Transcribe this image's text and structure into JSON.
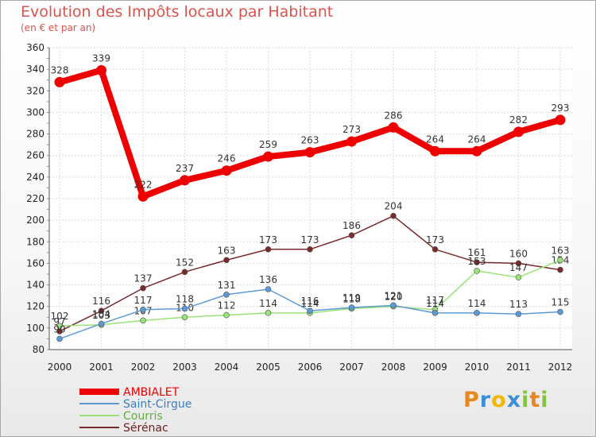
{
  "chart_data": {
    "type": "line",
    "title": "Evolution des Impôts locaux par Habitant",
    "subtitle": "(en € et par an)",
    "x": [
      "2000",
      "2001",
      "2002",
      "2003",
      "2004",
      "2005",
      "2006",
      "2007",
      "2008",
      "2009",
      "2010",
      "2011",
      "2012"
    ],
    "ylim": [
      80,
      360
    ],
    "yticks": [
      80,
      100,
      120,
      140,
      160,
      180,
      200,
      220,
      240,
      260,
      280,
      300,
      320,
      340,
      360
    ],
    "series": [
      {
        "name": "AMBIALET",
        "color": "#ee0000",
        "values": [
          328,
          339,
          222,
          237,
          246,
          259,
          263,
          273,
          286,
          264,
          264,
          282,
          293
        ]
      },
      {
        "name": "Saint-Cirgue",
        "color": "#5b9bd5",
        "values": [
          90,
          104,
          117,
          118,
          131,
          136,
          116,
          119,
          121,
          114,
          114,
          113,
          115
        ]
      },
      {
        "name": "Courris",
        "color": "#99e27a",
        "values": [
          102,
          103,
          107,
          110,
          112,
          114,
          114,
          118,
          120,
          117,
          153,
          147,
          163
        ]
      },
      {
        "name": "Sérénac",
        "color": "#7a2a2a",
        "values": [
          97,
          116,
          137,
          152,
          163,
          173,
          173,
          186,
          204,
          173,
          161,
          160,
          154
        ]
      }
    ],
    "legend_position": "bottom-left"
  },
  "logo": {
    "p": "P",
    "r": "r",
    "o": "o",
    "x": "x",
    "i1": "i",
    "t": "t",
    "i2": "i"
  }
}
